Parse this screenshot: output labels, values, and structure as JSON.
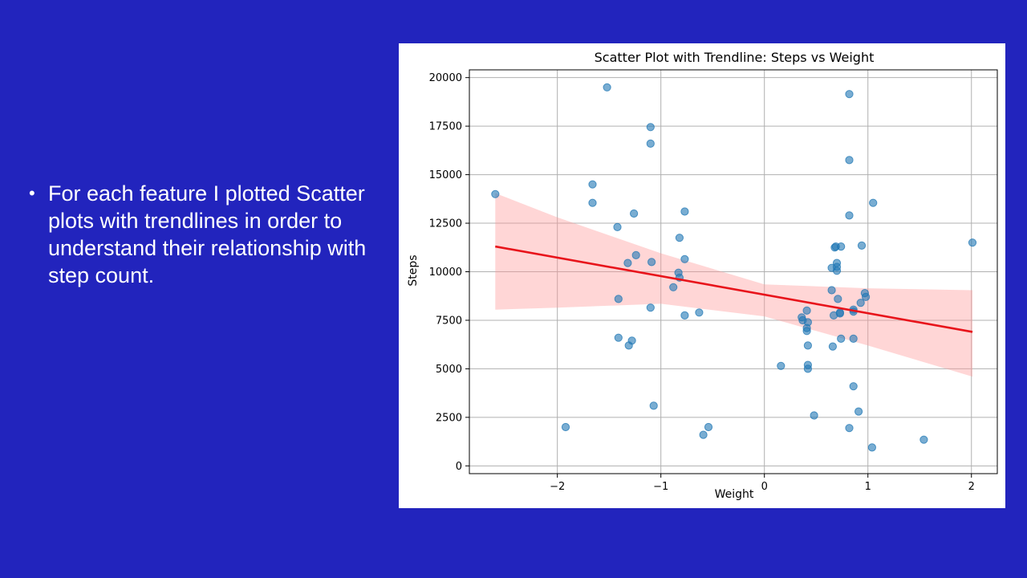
{
  "slide": {
    "bullet": "For each feature I plotted Scatter plots with trendlines in order to understand their relationship with step count."
  },
  "chart_data": {
    "type": "scatter",
    "title": "Scatter Plot with Trendline: Steps vs Weight",
    "xlabel": "Weight",
    "ylabel": "Steps",
    "xlim": [
      -2.85,
      2.25
    ],
    "ylim": [
      -400,
      20400
    ],
    "xticks": [
      -2,
      -1,
      0,
      1,
      2
    ],
    "xtick_labels": [
      "−2",
      "−1",
      "0",
      "1",
      "2"
    ],
    "yticks": [
      0,
      2500,
      5000,
      7500,
      10000,
      12500,
      15000,
      17500,
      20000
    ],
    "ytick_labels": [
      "0",
      "2500",
      "5000",
      "7500",
      "10000",
      "12500",
      "15000",
      "17500",
      "20000"
    ],
    "grid": true,
    "colors": {
      "points": "#1f77b4",
      "trendline": "#e8141b",
      "band": "#ff9999"
    },
    "points": [
      [
        -2.6,
        14000
      ],
      [
        -1.92,
        2000
      ],
      [
        -1.52,
        19500
      ],
      [
        -1.66,
        14500
      ],
      [
        -1.66,
        13550
      ],
      [
        -1.42,
        12300
      ],
      [
        -1.41,
        8600
      ],
      [
        -1.41,
        6600
      ],
      [
        -1.32,
        10450
      ],
      [
        -1.31,
        6200
      ],
      [
        -1.28,
        6450
      ],
      [
        -1.26,
        13000
      ],
      [
        -1.24,
        10850
      ],
      [
        -1.1,
        17450
      ],
      [
        -1.1,
        16600
      ],
      [
        -1.09,
        10500
      ],
      [
        -1.1,
        8150
      ],
      [
        -1.07,
        3100
      ],
      [
        -0.88,
        9200
      ],
      [
        -0.83,
        9950
      ],
      [
        -0.82,
        9700
      ],
      [
        -0.82,
        11750
      ],
      [
        -0.77,
        13100
      ],
      [
        -0.77,
        10650
      ],
      [
        -0.77,
        7750
      ],
      [
        -0.63,
        7900
      ],
      [
        -0.59,
        1600
      ],
      [
        -0.54,
        2000
      ],
      [
        0.16,
        5150
      ],
      [
        0.36,
        7650
      ],
      [
        0.37,
        7500
      ],
      [
        0.41,
        8000
      ],
      [
        0.42,
        7400
      ],
      [
        0.41,
        7100
      ],
      [
        0.41,
        6950
      ],
      [
        0.42,
        6200
      ],
      [
        0.42,
        5200
      ],
      [
        0.42,
        5000
      ],
      [
        0.48,
        2600
      ],
      [
        0.65,
        10200
      ],
      [
        0.65,
        9050
      ],
      [
        0.66,
        6150
      ],
      [
        0.67,
        7750
      ],
      [
        0.68,
        11250
      ],
      [
        0.69,
        11300
      ],
      [
        0.7,
        10450
      ],
      [
        0.7,
        10250
      ],
      [
        0.7,
        10050
      ],
      [
        0.71,
        8600
      ],
      [
        0.73,
        7900
      ],
      [
        0.73,
        7850
      ],
      [
        0.74,
        11300
      ],
      [
        0.74,
        6550
      ],
      [
        0.82,
        19150
      ],
      [
        0.82,
        15750
      ],
      [
        0.82,
        12900
      ],
      [
        0.82,
        1950
      ],
      [
        0.86,
        7950
      ],
      [
        0.86,
        8050
      ],
      [
        0.86,
        6550
      ],
      [
        0.86,
        4100
      ],
      [
        0.91,
        2800
      ],
      [
        0.93,
        8400
      ],
      [
        0.94,
        11350
      ],
      [
        0.97,
        8900
      ],
      [
        0.98,
        8700
      ],
      [
        1.04,
        950
      ],
      [
        1.05,
        13550
      ],
      [
        1.54,
        1350
      ],
      [
        2.01,
        11500
      ]
    ],
    "trendline": {
      "x": [
        -2.6,
        2.01
      ],
      "y": [
        11300,
        6900
      ]
    },
    "confidence_band": {
      "x": [
        -2.6,
        -2.0,
        -1.0,
        0.0,
        1.0,
        2.01
      ],
      "lower": [
        8050,
        8150,
        8350,
        7700,
        6200,
        4600
      ],
      "upper": [
        14050,
        12800,
        10950,
        9350,
        9150,
        9050
      ]
    }
  }
}
